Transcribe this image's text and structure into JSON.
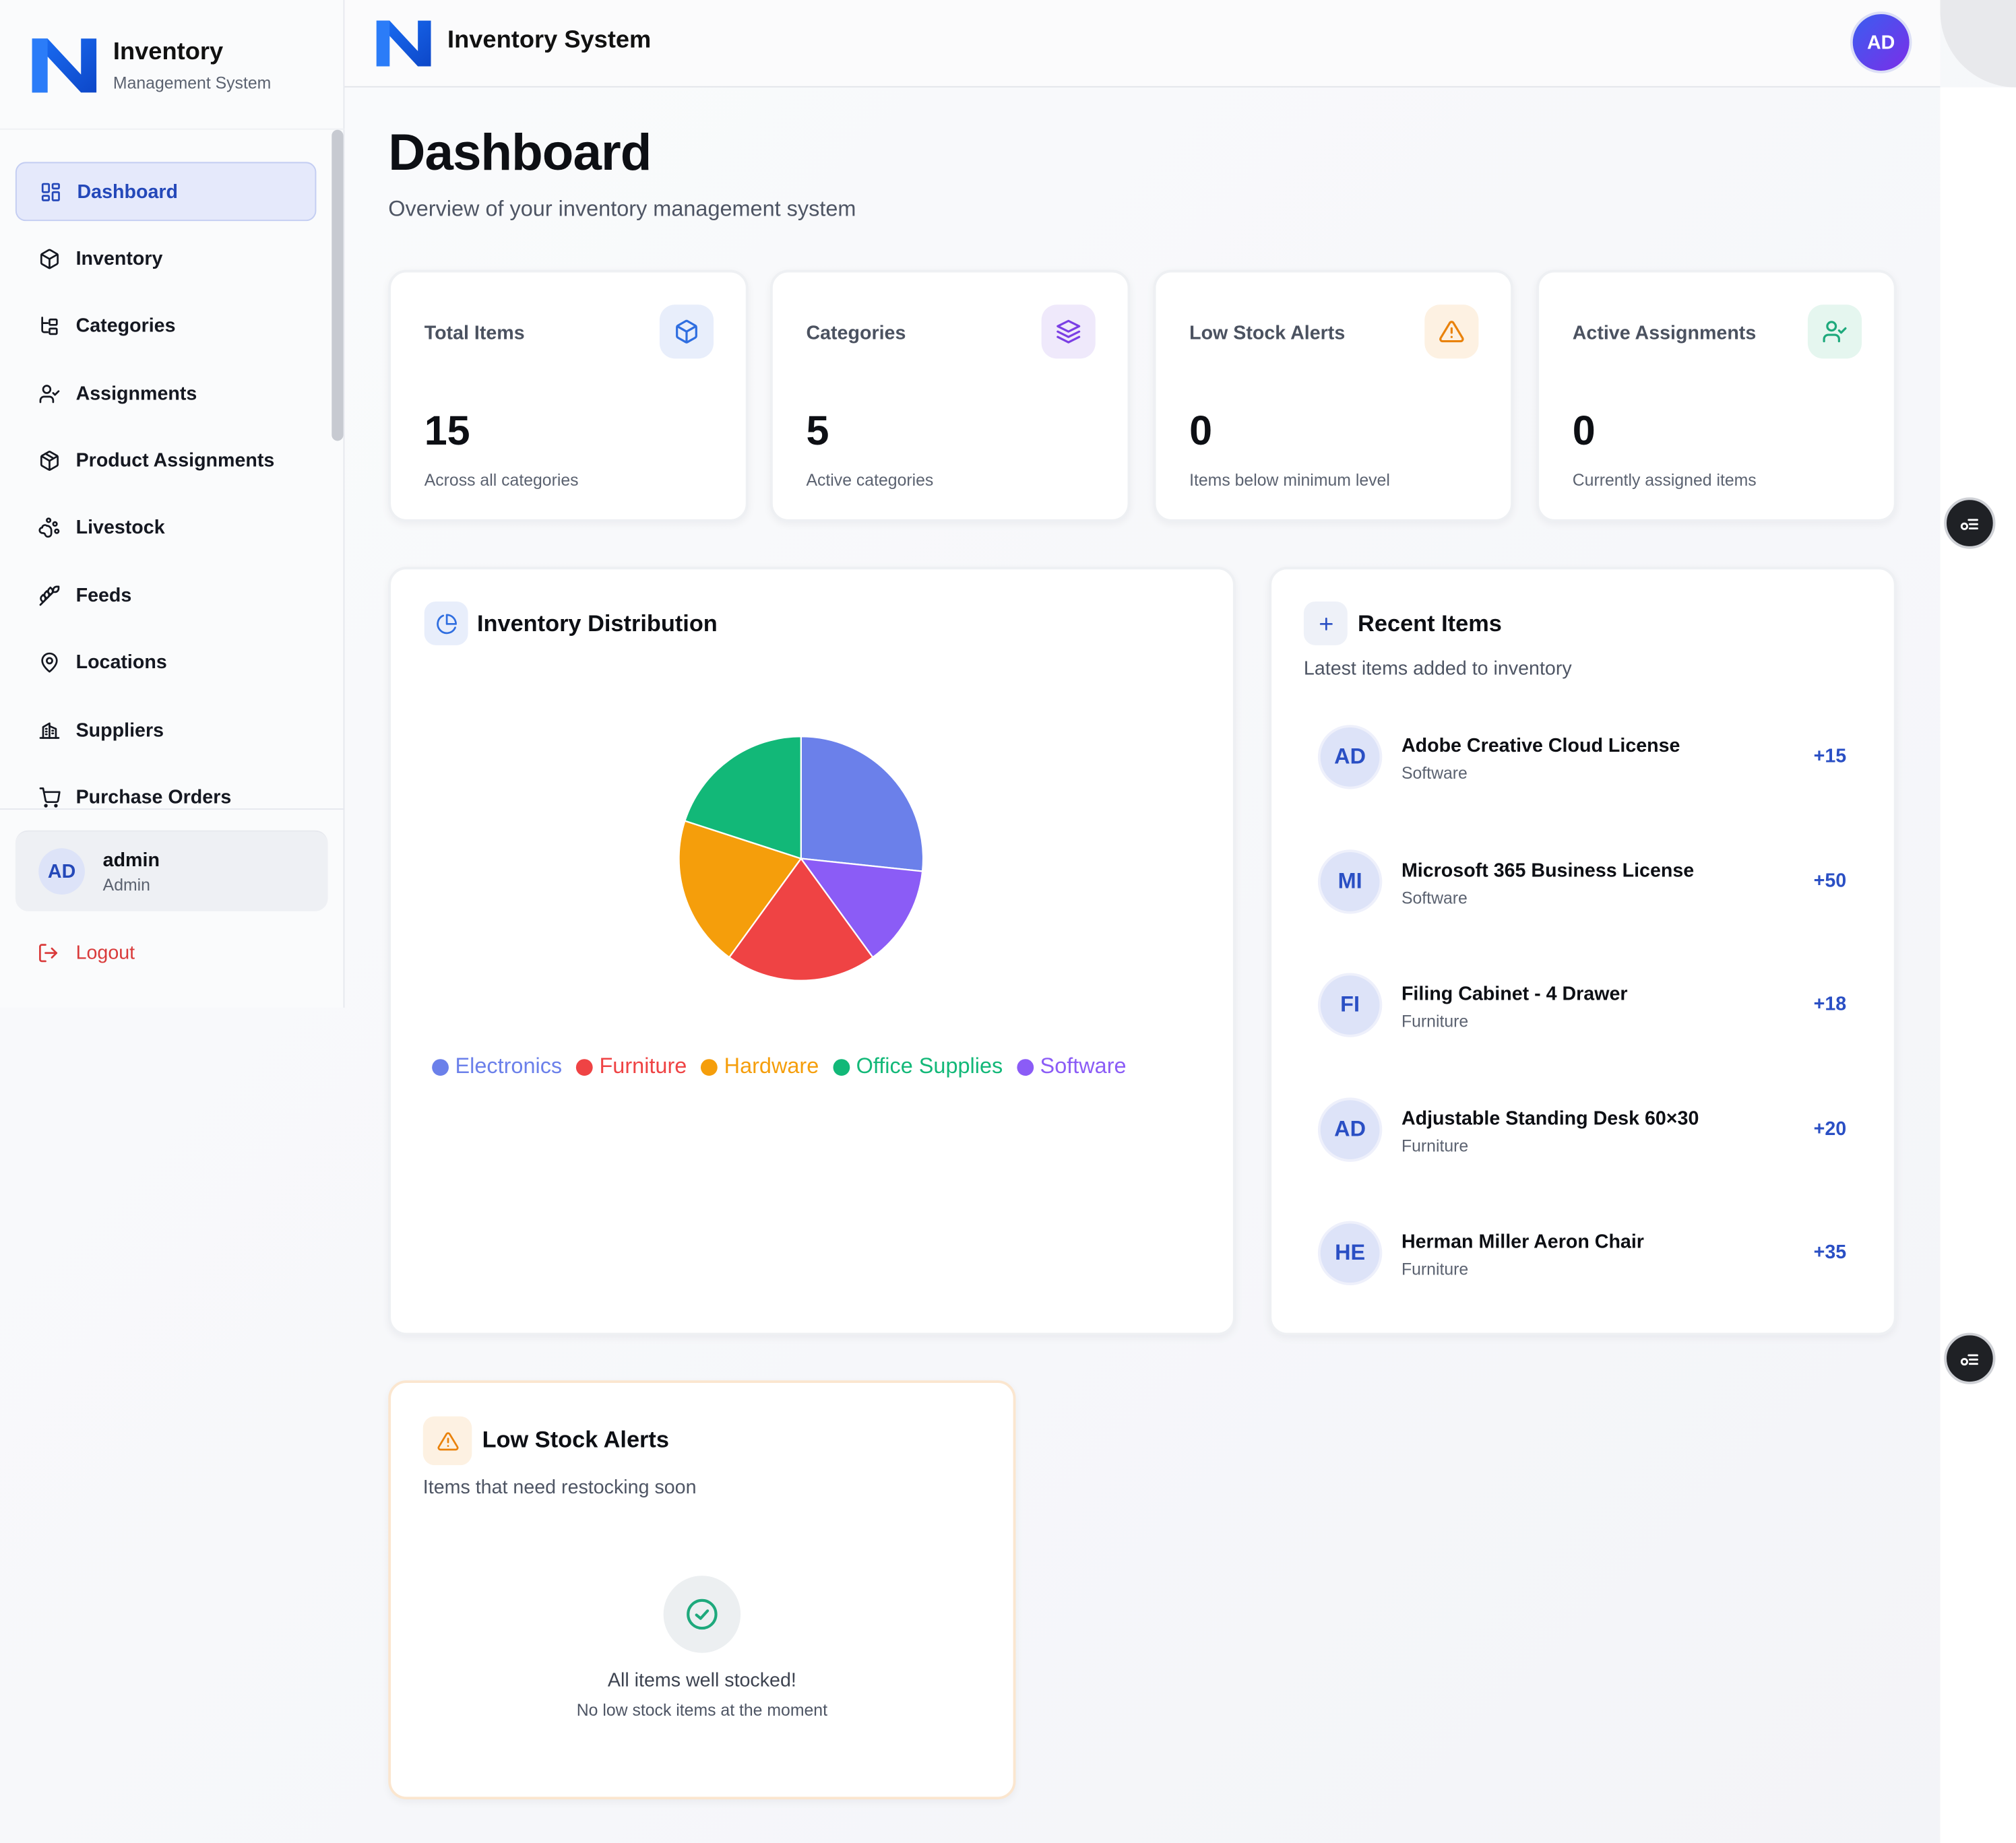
{
  "brand": {
    "title": "Inventory",
    "subtitle": "Management System"
  },
  "topbar": {
    "title": "Inventory System",
    "avatar": "AD"
  },
  "nav": [
    {
      "label": "Dashboard",
      "icon": "grid-icon",
      "active": true
    },
    {
      "label": "Inventory",
      "icon": "box-icon"
    },
    {
      "label": "Categories",
      "icon": "folder-tree-icon"
    },
    {
      "label": "Assignments",
      "icon": "user-check-icon"
    },
    {
      "label": "Product Assignments",
      "icon": "package-icon"
    },
    {
      "label": "Livestock",
      "icon": "paw-icon"
    },
    {
      "label": "Feeds",
      "icon": "wheat-icon"
    },
    {
      "label": "Locations",
      "icon": "map-pin-icon"
    },
    {
      "label": "Suppliers",
      "icon": "building-icon"
    },
    {
      "label": "Purchase Orders",
      "icon": "cart-icon"
    }
  ],
  "user": {
    "initials": "AD",
    "name": "admin",
    "role": "Admin"
  },
  "logout": "Logout",
  "page": {
    "title": "Dashboard",
    "subtitle": "Overview of your inventory management system"
  },
  "stats": [
    {
      "label": "Total Items",
      "value": "15",
      "desc": "Across all categories",
      "icon": "cube-icon",
      "color": "#2f6ee0",
      "bg": "#e8eefb"
    },
    {
      "label": "Categories",
      "value": "5",
      "desc": "Active categories",
      "icon": "layers-icon",
      "color": "#7b3fe4",
      "bg": "#efe9fb"
    },
    {
      "label": "Low Stock Alerts",
      "value": "0",
      "desc": "Items below minimum level",
      "icon": "alert-triangle-icon",
      "color": "#e9820c",
      "bg": "#fdf1e2"
    },
    {
      "label": "Active Assignments",
      "value": "0",
      "desc": "Currently assigned items",
      "icon": "user-check-icon",
      "color": "#1ea97c",
      "bg": "#e5f6ef"
    }
  ],
  "distribution": {
    "title": "Inventory Distribution"
  },
  "chart_data": {
    "type": "pie",
    "title": "Inventory Distribution",
    "categories": [
      "Electronics",
      "Furniture",
      "Hardware",
      "Office Supplies",
      "Software"
    ],
    "values": [
      4,
      3,
      3,
      3,
      2
    ],
    "colors": [
      "#6b80ea",
      "#ef4344",
      "#f59e0b",
      "#12b878",
      "#8b5cf6"
    ],
    "legend": "bottom"
  },
  "recent": {
    "title": "Recent Items",
    "subtitle": "Latest items added to inventory",
    "items": [
      {
        "initials": "AD",
        "name": "Adobe Creative Cloud License",
        "category": "Software",
        "qty": "+15"
      },
      {
        "initials": "MI",
        "name": "Microsoft 365 Business License",
        "category": "Software",
        "qty": "+50"
      },
      {
        "initials": "FI",
        "name": "Filing Cabinet - 4 Drawer",
        "category": "Furniture",
        "qty": "+18"
      },
      {
        "initials": "AD",
        "name": "Adjustable Standing Desk 60×30",
        "category": "Furniture",
        "qty": "+20"
      },
      {
        "initials": "HE",
        "name": "Herman Miller Aeron Chair",
        "category": "Furniture",
        "qty": "+35"
      }
    ]
  },
  "lowstock": {
    "title": "Low Stock Alerts",
    "subtitle": "Items that need restocking soon",
    "empty_title": "All items well stocked!",
    "empty_sub": "No low stock items at the moment"
  }
}
